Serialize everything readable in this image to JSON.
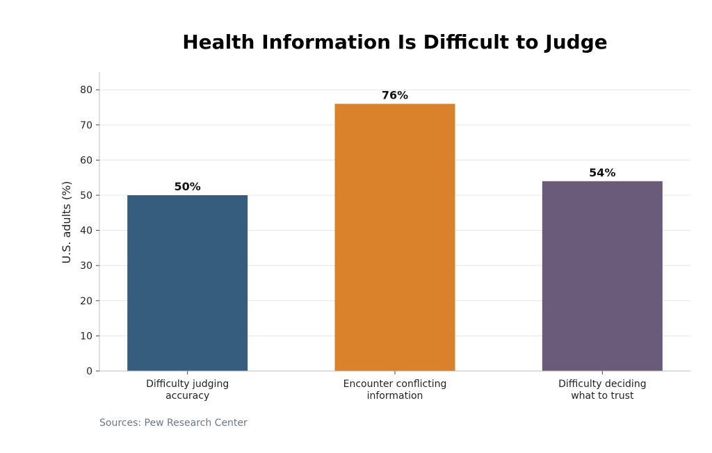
{
  "chart_data": {
    "type": "bar",
    "title": "Health Information Is Difficult to Judge",
    "ylabel": "U.S. adults (%)",
    "xlabel": "",
    "ylim": [
      0,
      85
    ],
    "yticks": [
      0,
      10,
      20,
      30,
      40,
      50,
      60,
      70,
      80
    ],
    "grid": true,
    "categories": [
      [
        "Difficulty judging",
        "accuracy"
      ],
      [
        "Encounter conflicting",
        "information"
      ],
      [
        "Difficulty deciding",
        "what to trust"
      ]
    ],
    "values": [
      50,
      76,
      54
    ],
    "data_labels": [
      "50%",
      "76%",
      "54%"
    ],
    "colors": [
      "#365d7d",
      "#d9822b",
      "#6b5b7b"
    ]
  },
  "source": "Sources: Pew Research Center"
}
